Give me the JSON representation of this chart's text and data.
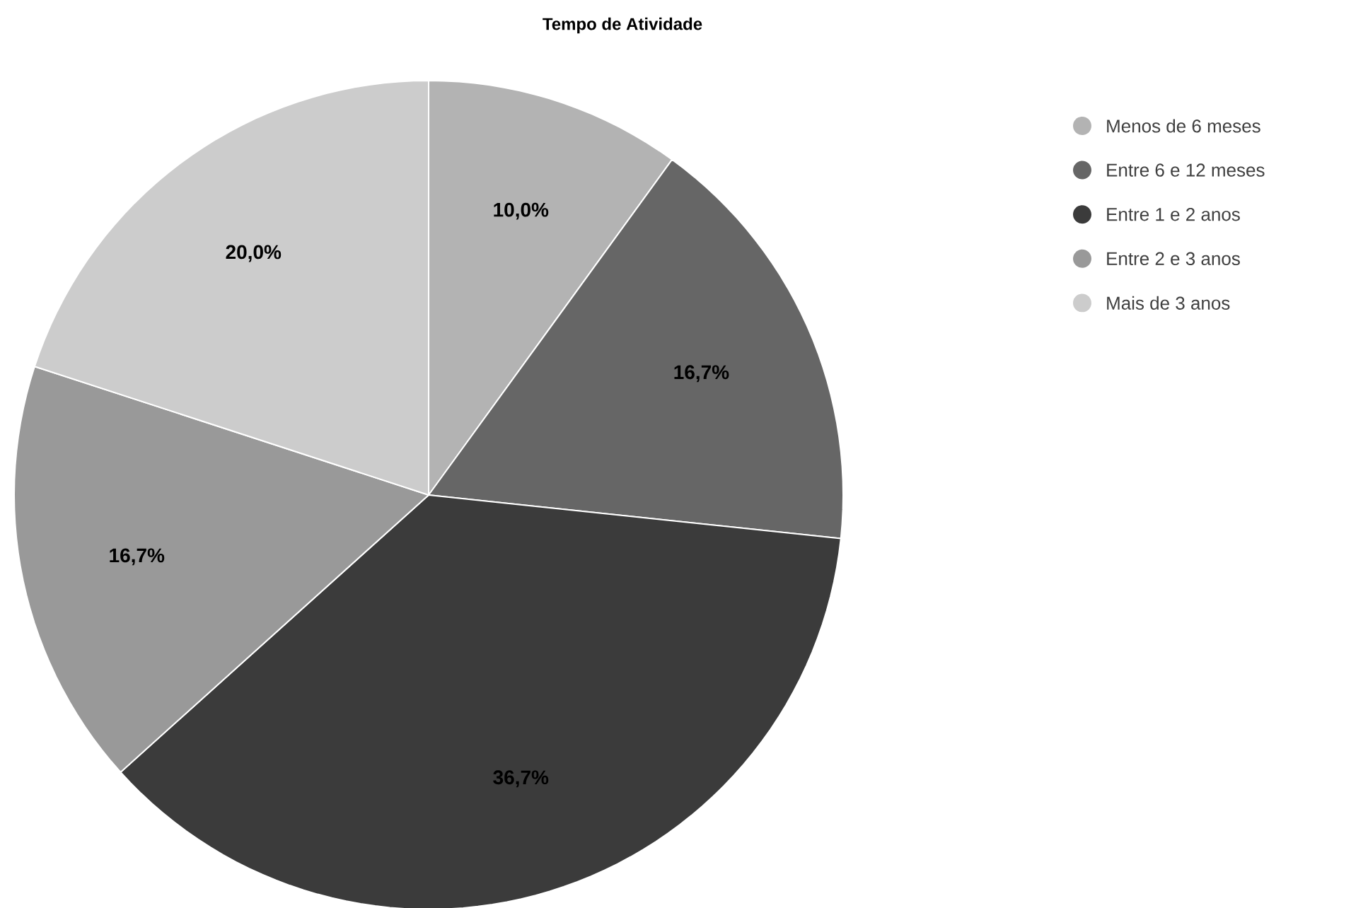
{
  "chart_data": {
    "type": "pie",
    "title": "Tempo de Atividade",
    "categories": [
      "Menos de 6 meses",
      "Entre 6 e 12 meses",
      "Entre 1 e 2 anos",
      "Entre 2 e 3 anos",
      "Mais de 3 anos"
    ],
    "values": [
      10.0,
      16.7,
      36.7,
      16.7,
      20.0
    ],
    "value_labels": [
      "10,0%",
      "16,7%",
      "36,7%",
      "16,7%",
      "20,0%"
    ],
    "colors": [
      "#b3b3b3",
      "#666666",
      "#3b3b3b",
      "#999999",
      "#cccccc"
    ],
    "legend": "top right"
  }
}
